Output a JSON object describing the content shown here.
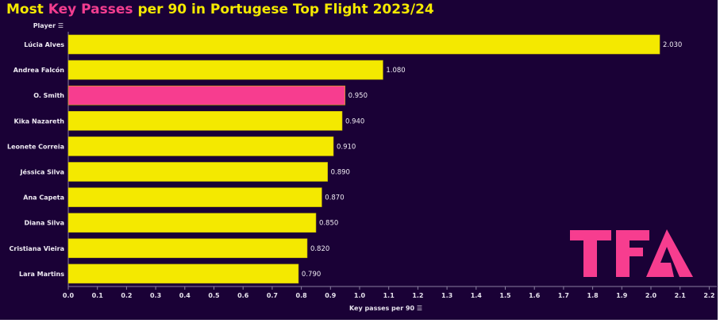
{
  "title": {
    "prefix": "Most ",
    "highlight": "Key Passes",
    "suffix": " per 90 in Portugese Top Flight 2023/24"
  },
  "colors": {
    "background": "#1a0136",
    "bar": "#f4e900",
    "highlight_bar": "#f73d8f",
    "title": "#f4e900",
    "title_highlight": "#f23d8f",
    "logo": "#f73d8f"
  },
  "logo_text": "TFA",
  "chart_data": {
    "type": "bar",
    "orientation": "horizontal",
    "title": "Most Key Passes per 90 in Portugese Top Flight 2023/24",
    "ylabel": "Player",
    "xlabel": "Key passes per 90",
    "xlim": [
      0,
      2.2
    ],
    "xticks": [
      "0.0",
      "0.1",
      "0.2",
      "0.3",
      "0.4",
      "0.5",
      "0.6",
      "0.7",
      "0.8",
      "0.9",
      "1.0",
      "1.1",
      "1.2",
      "1.3",
      "1.4",
      "1.5",
      "1.6",
      "1.7",
      "1.8",
      "1.9",
      "2.0",
      "2.1",
      "2.2"
    ],
    "categories": [
      "Lúcia Alves",
      "Andrea Falcón",
      "O. Smith",
      "Kika Nazareth",
      "Leonete Correia",
      "Jéssica Silva",
      "Ana Capeta",
      "Diana Silva",
      "Cristiana Vieira",
      "Lara Martins"
    ],
    "values": [
      2.03,
      1.08,
      0.95,
      0.94,
      0.91,
      0.89,
      0.87,
      0.85,
      0.82,
      0.79
    ],
    "data_labels": [
      "2.030",
      "1.080",
      "0.950",
      "0.940",
      "0.910",
      "0.890",
      "0.870",
      "0.850",
      "0.820",
      "0.790"
    ],
    "highlighted": [
      "O. Smith"
    ],
    "grid": false
  }
}
